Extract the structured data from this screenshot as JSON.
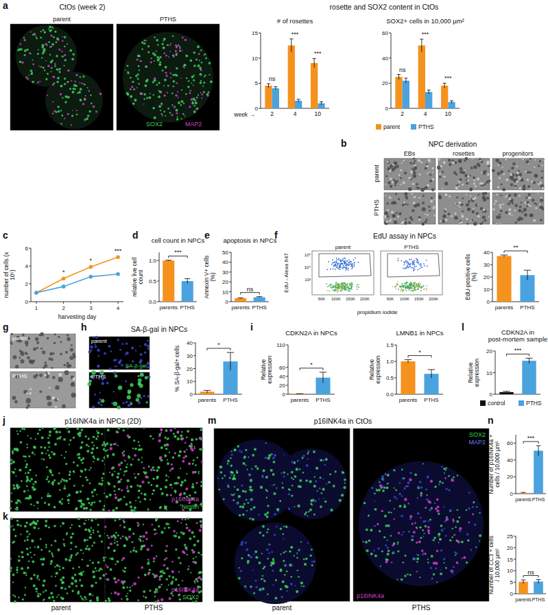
{
  "panel_letters": [
    "a",
    "b",
    "c",
    "d",
    "e",
    "f",
    "g",
    "h",
    "i",
    "l",
    "j",
    "k",
    "m",
    "n"
  ],
  "headers": {
    "a_left": "CtOs (week 2)",
    "a_right": "rosette and SOX2 content in CtOs",
    "b": "NPC derivation",
    "f": "EdU assay in NPCs",
    "h": "SA-β-gal in NPCs",
    "j": "p16INK4a in NPCs (2D)",
    "m": "p16INK4a in CtOs"
  },
  "images": {
    "a": {
      "columns": [
        "parent",
        "PTHS"
      ],
      "channels": [
        "SOX2",
        "MAP2"
      ]
    },
    "b": {
      "columns": [
        "EBs",
        "rosettes",
        "progenitors"
      ],
      "rows": [
        "parent",
        "PTHS"
      ]
    },
    "f": {
      "columns": [
        "parent",
        "PTHS"
      ],
      "ylabel": "EdU - Alexa 647",
      "xlabel": "propidium iodide",
      "yticks": [
        "10⁵",
        "10⁴",
        "10³"
      ],
      "xticks": [
        "50K",
        "100K",
        "150K",
        "200K"
      ]
    },
    "g": {
      "rows": [
        "parent",
        "PTHS"
      ]
    },
    "h": {
      "rows": [
        "parent",
        "PTHS"
      ],
      "channels": [
        "SA-β-gal"
      ]
    },
    "j": {
      "channels": [
        "Nestin",
        "p16INK4a"
      ]
    },
    "k": {
      "columns": [
        "parent",
        "PTHS"
      ],
      "channels": [
        "SOX2",
        "p16INK4a"
      ]
    },
    "m": {
      "columns": [
        "parent",
        "PTHS"
      ],
      "channels": [
        "SOX2",
        "MAP2",
        "p16INK4a"
      ]
    }
  },
  "chart_data": [
    {
      "type": "bar",
      "title": "# of rosettes",
      "xlabel": "week →",
      "categories": [
        "2",
        "4",
        "10"
      ],
      "series": [
        {
          "name": "parent",
          "color": "#f5921e",
          "values": [
            4.5,
            12.5,
            9
          ],
          "errors": [
            0.4,
            1.3,
            0.9
          ]
        },
        {
          "name": "PTHS",
          "color": "#4aa3df",
          "values": [
            4,
            1.5,
            1
          ],
          "errors": [
            0.3,
            0.3,
            0.3
          ]
        }
      ],
      "annotations": [
        "ns",
        "***",
        "***"
      ],
      "ylim": [
        0,
        15
      ],
      "yticks": [
        0,
        5,
        10,
        15
      ]
    },
    {
      "type": "bar",
      "title": "SOX2+ cells in 10,000 µm²",
      "categories": [
        "2",
        "4",
        "10"
      ],
      "series": [
        {
          "name": "parent",
          "color": "#f5921e",
          "values": [
            25,
            50,
            18
          ],
          "errors": [
            2,
            5,
            2
          ]
        },
        {
          "name": "PTHS",
          "color": "#4aa3df",
          "values": [
            22,
            13,
            5
          ],
          "errors": [
            2,
            1.5,
            1
          ]
        }
      ],
      "annotations": [
        "ns",
        "***",
        "***"
      ],
      "ylim": [
        0,
        60
      ],
      "yticks": [
        0,
        20,
        40,
        60
      ],
      "legend": "bottom"
    },
    {
      "type": "line",
      "xlabel": "harvesting day",
      "ylabel": "number of cells (x 10⁵)",
      "x": [
        1,
        2,
        3,
        4
      ],
      "series": [
        {
          "name": "parent",
          "color": "#f5921e",
          "values": [
            1,
            2.6,
            3.9,
            5.0
          ]
        },
        {
          "name": "PTHS",
          "color": "#4aa3df",
          "values": [
            1,
            1.7,
            2.8,
            3.1
          ]
        }
      ],
      "marker": "circle",
      "annotations": [
        null,
        "*",
        "*",
        "***"
      ],
      "xlim": [
        0.8,
        4.2
      ],
      "xticks": [
        1,
        2,
        3,
        4
      ],
      "ylim": [
        0,
        6
      ],
      "yticks": [
        0,
        2,
        4,
        6
      ]
    },
    {
      "type": "bar",
      "title": "cell count in NPCs",
      "ylabel": "relative live cell count",
      "categories": [
        "parents",
        "PTHS"
      ],
      "values": [
        1.0,
        0.5
      ],
      "errors": [
        0.01,
        0.06
      ],
      "colors": [
        "#f5921e",
        "#4aa3df"
      ],
      "annotations": [
        "***"
      ],
      "ylim": [
        0,
        1.2
      ],
      "yticks": [
        {
          "value": 0,
          "label": "0.0"
        },
        {
          "value": 0.5,
          "label": "0.5"
        },
        {
          "value": 1,
          "label": "1.0"
        }
      ]
    },
    {
      "type": "bar",
      "title": "apoptosis in NPCs",
      "ylabel": "Annexin V+ cells (%)",
      "categories": [
        "parents",
        "PTHS"
      ],
      "values": [
        3.5,
        4.5
      ],
      "errors": [
        0.4,
        0.6
      ],
      "colors": [
        "#f5921e",
        "#4aa3df"
      ],
      "annotations": [
        "ns"
      ],
      "ylim": [
        0,
        50
      ],
      "yticks": [
        0,
        10,
        20,
        30,
        40,
        50
      ]
    },
    {
      "type": "bar",
      "ylabel": "EdU-positive cells (%)",
      "categories": [
        "parents",
        "PTHS"
      ],
      "values": [
        37,
        21.5
      ],
      "errors": [
        0.8,
        4
      ],
      "colors": [
        "#f5921e",
        "#4aa3df"
      ],
      "annotations": [
        "**"
      ],
      "ylim": [
        0,
        40
      ],
      "yticks": [
        0,
        10,
        20,
        30,
        40
      ]
    },
    {
      "type": "bar",
      "ylabel": "% SA-β-gal+ cells",
      "categories": [
        "parents",
        "PTHS"
      ],
      "values": [
        2,
        25.5
      ],
      "errors": [
        1,
        7
      ],
      "colors": [
        "#f5921e",
        "#4aa3df"
      ],
      "annotations": [
        "*"
      ],
      "ylim": [
        0,
        40
      ],
      "yticks": [
        0,
        10,
        20,
        30,
        40
      ]
    },
    {
      "type": "bar",
      "title": "CDKN2A in NPCs",
      "ylabel": "Relative expression",
      "categories": [
        "parents",
        "PTHS"
      ],
      "values": [
        1,
        37
      ],
      "errors": [
        0.2,
        12
      ],
      "colors": [
        "#f5921e",
        "#4aa3df"
      ],
      "annotations": [
        "*"
      ],
      "ylim": [
        0,
        110
      ],
      "yticks": [
        0,
        20,
        40,
        60,
        110
      ]
    },
    {
      "type": "bar",
      "title": "LMNB1 in NPCs",
      "ylabel": "Relative expression",
      "categories": [
        "parents",
        "PTHS"
      ],
      "values": [
        1.0,
        0.62
      ],
      "errors": [
        0.05,
        0.13
      ],
      "colors": [
        "#f5921e",
        "#4aa3df"
      ],
      "annotations": [
        "*"
      ],
      "ylim": [
        0,
        1.5
      ],
      "yticks": [
        {
          "value": 0,
          "label": "0.0"
        },
        {
          "value": 0.5,
          "label": "0.5"
        },
        {
          "value": 1,
          "label": "1.0"
        },
        {
          "value": 1.5,
          "label": "1.5"
        }
      ]
    },
    {
      "type": "bar",
      "title": "CDKN2A in post-mortem sample",
      "ylabel": "Relative expression",
      "categories": [
        "control",
        "PTHS"
      ],
      "values": [
        1,
        15.5
      ],
      "errors": [
        0.35,
        1.2
      ],
      "colors": [
        "#111111",
        "#4aa3df"
      ],
      "annotations": [
        "***"
      ],
      "ylim": [
        0,
        20
      ],
      "yticks": [
        0,
        10,
        20
      ],
      "legend": "bottom",
      "tick_labels": "y"
    },
    {
      "type": "bar",
      "ylabel": "Number of p16INK4a + cells / 10,000 µm²",
      "categories": [
        "parents",
        "PTHS"
      ],
      "values": [
        1,
        51
      ],
      "errors": [
        0.5,
        6
      ],
      "colors": [
        "#f5921e",
        "#4aa3df"
      ],
      "annotations": [
        "***"
      ],
      "ylim": [
        0,
        70
      ],
      "yticks": [
        0,
        20,
        40,
        60
      ]
    },
    {
      "type": "bar",
      "ylabel": "Number of CC3 + cells / 10,000 µm²",
      "categories": [
        "parents",
        "PTHS"
      ],
      "values": [
        5.2,
        5.3
      ],
      "errors": [
        0.8,
        0.8
      ],
      "colors": [
        "#f5921e",
        "#4aa3df"
      ],
      "annotations": [
        "ns"
      ],
      "ylim": [
        0,
        25
      ],
      "yticks": [
        0,
        5,
        10,
        15,
        20,
        25
      ]
    }
  ]
}
